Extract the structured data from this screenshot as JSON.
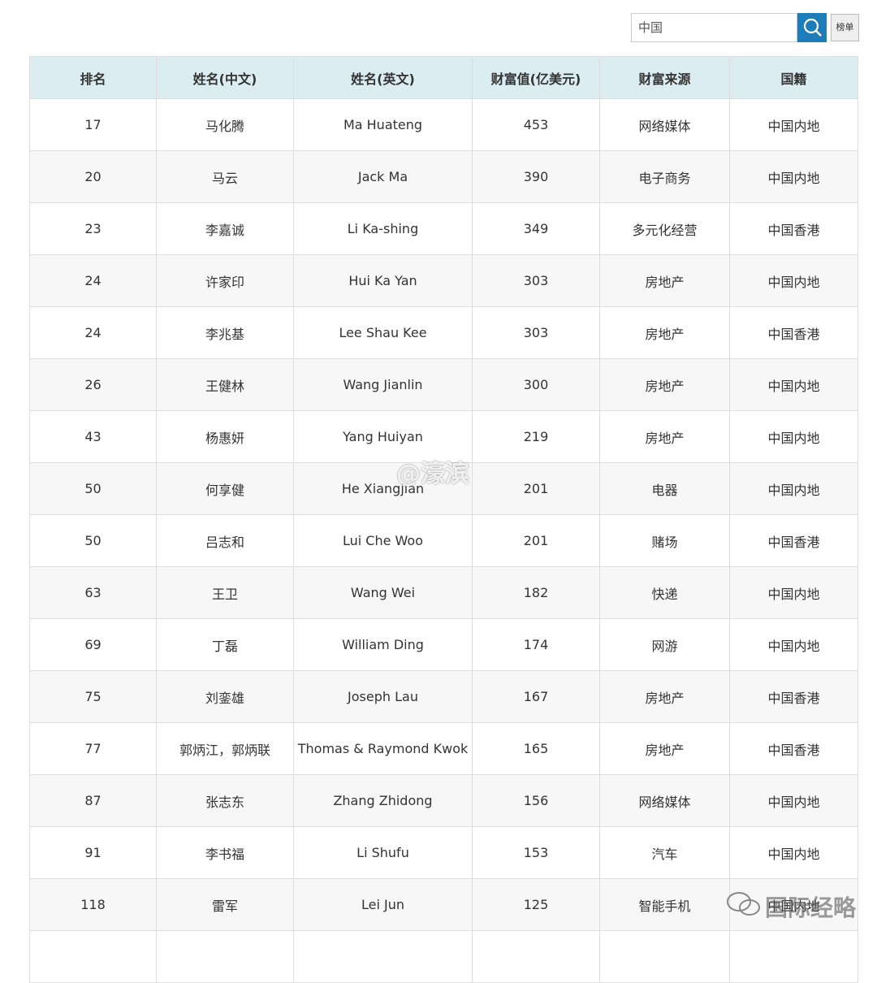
{
  "search": {
    "query": "中国",
    "button": "榜单"
  },
  "table": {
    "headers": [
      "排名",
      "姓名(中文)",
      "姓名(英文)",
      "财富值(亿美元)",
      "财富来源",
      "国籍"
    ],
    "rows": [
      [
        17,
        "马化腾",
        "Ma Huateng",
        453,
        "网络媒体",
        "中国内地"
      ],
      [
        20,
        "马云",
        "Jack Ma",
        390,
        "电子商务",
        "中国内地"
      ],
      [
        23,
        "李嘉诚",
        "Li Ka-shing",
        349,
        "多元化经营",
        "中国香港"
      ],
      [
        24,
        "许家印",
        "Hui Ka Yan",
        303,
        "房地产",
        "中国内地"
      ],
      [
        24,
        "李兆基",
        "Lee Shau Kee",
        303,
        "房地产",
        "中国香港"
      ],
      [
        26,
        "王健林",
        "Wang Jianlin",
        300,
        "房地产",
        "中国内地"
      ],
      [
        43,
        "杨惠妍",
        "Yang Huiyan",
        219,
        "房地产",
        "中国内地"
      ],
      [
        50,
        "何享健",
        "He Xiangjian",
        201,
        "电器",
        "中国内地"
      ],
      [
        50,
        "吕志和",
        "Lui Che Woo",
        201,
        "赌场",
        "中国香港"
      ],
      [
        63,
        "王卫",
        "Wang Wei",
        182,
        "快递",
        "中国内地"
      ],
      [
        69,
        "丁磊",
        "William Ding",
        174,
        "网游",
        "中国内地"
      ],
      [
        75,
        "刘銮雄",
        "Joseph Lau",
        167,
        "房地产",
        "中国香港"
      ],
      [
        77,
        "郭炳江，郭炳联",
        "Thomas & Raymond Kwok",
        165,
        "房地产",
        "中国香港"
      ],
      [
        87,
        "张志东",
        "Zhang Zhidong",
        156,
        "网络媒体",
        "中国内地"
      ],
      [
        91,
        "李书福",
        "Li Shufu",
        153,
        "汽车",
        "中国内地"
      ],
      [
        118,
        "雷军",
        "Lei Jun",
        125,
        "智能手机",
        "中国内地"
      ]
    ]
  },
  "watermarks": [
    "@濠滨",
    "国际经略"
  ]
}
